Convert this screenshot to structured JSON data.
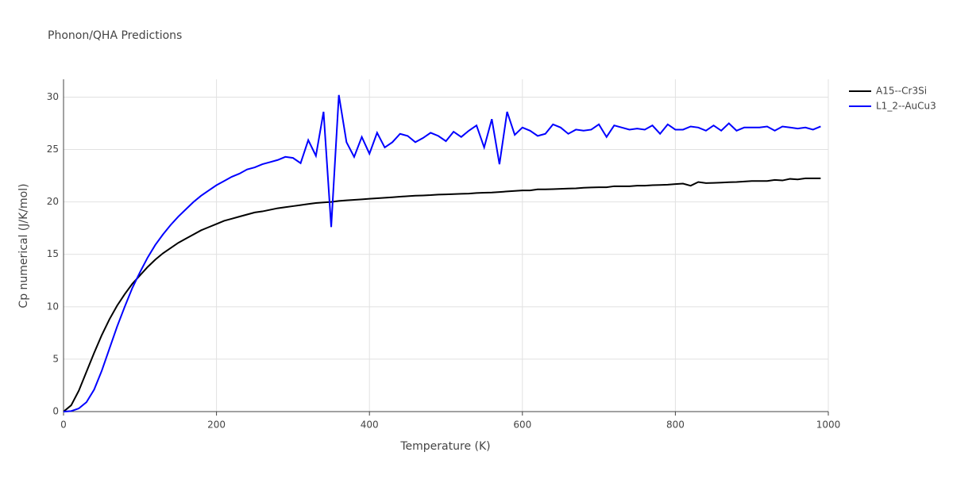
{
  "chart_data": {
    "type": "line",
    "title": "Phonon/QHA Predictions",
    "x_label": "Temperature (K)",
    "y_label": "Cp numerical (J/K/mol)",
    "x": [
      0,
      10,
      20,
      30,
      40,
      50,
      60,
      70,
      80,
      90,
      100,
      110,
      120,
      130,
      140,
      150,
      160,
      170,
      180,
      190,
      200,
      210,
      220,
      230,
      240,
      250,
      260,
      270,
      280,
      290,
      300,
      310,
      320,
      330,
      340,
      350,
      360,
      370,
      380,
      390,
      400,
      410,
      420,
      430,
      440,
      450,
      460,
      470,
      480,
      490,
      500,
      510,
      520,
      530,
      540,
      550,
      560,
      570,
      580,
      590,
      600,
      610,
      620,
      630,
      640,
      650,
      660,
      670,
      680,
      690,
      700,
      710,
      720,
      730,
      740,
      750,
      760,
      770,
      780,
      790,
      800,
      810,
      820,
      830,
      840,
      850,
      860,
      870,
      880,
      890,
      900,
      910,
      920,
      930,
      940,
      950,
      960,
      970,
      980,
      990
    ],
    "series": [
      {
        "name": "A15--Cr3Si",
        "color": "#000000",
        "values": [
          0,
          0.6,
          2.0,
          3.8,
          5.6,
          7.3,
          8.8,
          10.1,
          11.2,
          12.2,
          13.0,
          13.8,
          14.5,
          15.1,
          15.6,
          16.1,
          16.5,
          16.9,
          17.3,
          17.6,
          17.9,
          18.2,
          18.4,
          18.6,
          18.8,
          19.0,
          19.1,
          19.25,
          19.4,
          19.5,
          19.6,
          19.7,
          19.8,
          19.9,
          19.95,
          20.0,
          20.1,
          20.15,
          20.2,
          20.25,
          20.3,
          20.35,
          20.4,
          20.45,
          20.5,
          20.55,
          20.6,
          20.62,
          20.65,
          20.7,
          20.72,
          20.75,
          20.78,
          20.8,
          20.85,
          20.88,
          20.9,
          20.95,
          21.0,
          21.05,
          21.1,
          21.1,
          21.2,
          21.2,
          21.22,
          21.25,
          21.28,
          21.3,
          21.35,
          21.38,
          21.4,
          21.4,
          21.5,
          21.5,
          21.5,
          21.55,
          21.55,
          21.6,
          21.62,
          21.65,
          21.7,
          21.75,
          21.55,
          21.9,
          21.8,
          21.82,
          21.85,
          21.88,
          21.9,
          21.95,
          22.0,
          22.0,
          22.0,
          22.1,
          22.05,
          22.2,
          22.15,
          22.25,
          22.25,
          22.25
        ]
      },
      {
        "name": "L1_2--AuCu3",
        "color": "#0000ff",
        "values": [
          0,
          0.05,
          0.3,
          0.9,
          2.1,
          3.9,
          6.0,
          8.1,
          10.0,
          11.8,
          13.3,
          14.7,
          15.9,
          16.9,
          17.8,
          18.6,
          19.3,
          20.0,
          20.6,
          21.1,
          21.6,
          22.0,
          22.4,
          22.7,
          23.1,
          23.3,
          23.6,
          23.8,
          24.0,
          24.3,
          24.2,
          23.7,
          25.9,
          24.4,
          28.6,
          17.6,
          30.2,
          25.7,
          24.3,
          26.2,
          24.6,
          26.6,
          25.2,
          25.7,
          26.5,
          26.3,
          25.7,
          26.1,
          26.6,
          26.3,
          25.8,
          26.7,
          26.2,
          26.8,
          27.3,
          25.2,
          27.9,
          23.6,
          28.6,
          26.4,
          27.1,
          26.8,
          26.3,
          26.5,
          27.4,
          27.1,
          26.5,
          26.9,
          26.8,
          26.9,
          27.4,
          26.2,
          27.3,
          27.1,
          26.9,
          27.0,
          26.9,
          27.3,
          26.5,
          27.4,
          26.9,
          26.9,
          27.2,
          27.1,
          26.8,
          27.3,
          26.8,
          27.5,
          26.8,
          27.1,
          27.1,
          27.1,
          27.2,
          26.8,
          27.2,
          27.1,
          27.0,
          27.1,
          26.9,
          27.2
        ]
      }
    ],
    "xlim": [
      0,
      1000
    ],
    "xticks": [
      0,
      200,
      400,
      600,
      800,
      1000
    ],
    "ylim": [
      0,
      31.7
    ],
    "yticks": [
      0,
      5,
      10,
      15,
      20,
      25,
      30
    ],
    "grid": true,
    "legend": "right"
  }
}
